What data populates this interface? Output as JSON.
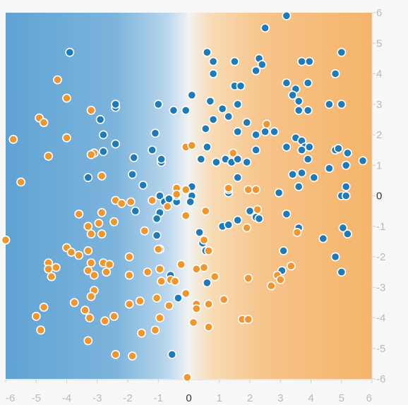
{
  "chart_data": {
    "type": "scatter",
    "title": "",
    "xlabel": "",
    "ylabel": "",
    "xlim": [
      -6,
      6
    ],
    "ylim": [
      -6,
      6
    ],
    "x_ticks": [
      "-6",
      "-5",
      "-4",
      "-3",
      "-2",
      "-1",
      "0",
      "1",
      "2",
      "3",
      "4",
      "5",
      "6"
    ],
    "y_ticks": [
      "6",
      "5",
      "4",
      "3",
      "2",
      "1",
      "0",
      "-1",
      "-2",
      "-3",
      "-4",
      "-5",
      "-6"
    ],
    "grid": false,
    "legend": "none",
    "background": {
      "type": "gradient-heatmap",
      "negative_color": "#6aa9d6",
      "mid_color": "#f2f2f2",
      "positive_color": "#f5b46a"
    },
    "colors": {
      "blue": "#1f7ab8",
      "orange": "#f0962e"
    },
    "series": [
      {
        "color_key": "blue",
        "points": [
          [
            3.2,
            5.9
          ],
          [
            2.5,
            5.5
          ],
          [
            0.6,
            4.7
          ],
          [
            0.8,
            4.4
          ],
          [
            0.8,
            4.0
          ],
          [
            1.5,
            4.4
          ],
          [
            2.3,
            4.5
          ],
          [
            2.4,
            4.3
          ],
          [
            2.2,
            4.1
          ],
          [
            3.7,
            4.4
          ],
          [
            3.95,
            4.4
          ],
          [
            4.8,
            4.0
          ],
          [
            5.0,
            4.7
          ],
          [
            1.5,
            3.6
          ],
          [
            1.7,
            3.6
          ],
          [
            3.2,
            3.7
          ],
          [
            3.5,
            3.5
          ],
          [
            3.9,
            3.7
          ],
          [
            3.4,
            3.3
          ],
          [
            3.6,
            3.1
          ],
          [
            3.6,
            2.8
          ],
          [
            3.9,
            2.8
          ],
          [
            4.6,
            3.0
          ],
          [
            5.0,
            3.0
          ],
          [
            0.1,
            3.3
          ],
          [
            0.7,
            3.1
          ],
          [
            1.1,
            2.85
          ],
          [
            1.6,
            3.0
          ],
          [
            1.3,
            2.6
          ],
          [
            0.8,
            2.5
          ],
          [
            1.9,
            2.4
          ],
          [
            2.2,
            2.0
          ],
          [
            2.5,
            2.1
          ],
          [
            2.8,
            2.1
          ],
          [
            1.6,
            2.1
          ],
          [
            3.5,
            1.9
          ],
          [
            3.7,
            1.8
          ],
          [
            3.8,
            1.6
          ],
          [
            3.95,
            1.6
          ],
          [
            3.7,
            1.5
          ],
          [
            0.55,
            2.2
          ],
          [
            0.6,
            1.6
          ],
          [
            0.4,
            1.2
          ],
          [
            0.9,
            1.1
          ],
          [
            1.2,
            1.2
          ],
          [
            1.4,
            1.1
          ],
          [
            1.6,
            1.2
          ],
          [
            2.2,
            1.5
          ],
          [
            1.9,
            1.1
          ],
          [
            1.6,
            0.6
          ],
          [
            3.2,
            1.6
          ],
          [
            3.4,
            0.7
          ],
          [
            3.7,
            0.75
          ],
          [
            3.9,
            1.2
          ],
          [
            4.1,
            0.6
          ],
          [
            4.6,
            0.9
          ],
          [
            4.8,
            1.5
          ],
          [
            4.9,
            1.55
          ],
          [
            5.2,
            1.4
          ],
          [
            5.15,
            1.0
          ],
          [
            5.7,
            1.15
          ],
          [
            3.6,
            0.3
          ],
          [
            2.95,
            0.1
          ],
          [
            5.15,
            0.3
          ],
          [
            5.0,
            0.0
          ],
          [
            5.15,
            0.0
          ],
          [
            1.3,
            0.1
          ],
          [
            1.3,
            0.2
          ],
          [
            -3.9,
            4.7
          ],
          [
            -2.4,
            2.9
          ],
          [
            -2.4,
            3.0
          ],
          [
            -1.0,
            3.0
          ],
          [
            -0.5,
            2.8
          ],
          [
            -0.1,
            2.8
          ],
          [
            -2.9,
            2.5
          ],
          [
            -2.8,
            2.0
          ],
          [
            -2.4,
            1.7
          ],
          [
            -2.8,
            1.45
          ],
          [
            -1.8,
            1.25
          ],
          [
            -1.2,
            1.5
          ],
          [
            -1.1,
            2.05
          ],
          [
            -0.9,
            1.1
          ],
          [
            -0.9,
            1.2
          ],
          [
            -3.3,
            0.6
          ],
          [
            -1.85,
            0.7
          ],
          [
            -1.5,
            0.35
          ],
          [
            -0.95,
            0.0
          ],
          [
            -0.8,
            -0.2
          ],
          [
            -0.65,
            -0.1
          ],
          [
            -0.4,
            -0.2
          ],
          [
            -0.4,
            0.0
          ],
          [
            0.1,
            0.3
          ],
          [
            0.1,
            0.0
          ],
          [
            0.05,
            -0.2
          ],
          [
            -1.75,
            -0.5
          ],
          [
            -0.95,
            -0.55
          ],
          [
            -1.05,
            -0.75
          ],
          [
            -1.05,
            -1.3
          ],
          [
            -0.95,
            -1.75
          ],
          [
            0.35,
            -1.2
          ],
          [
            0.45,
            -1.55
          ],
          [
            0.55,
            -1.8
          ],
          [
            1.1,
            -1.0
          ],
          [
            1.3,
            -0.95
          ],
          [
            1.6,
            -0.8
          ],
          [
            2.0,
            -0.5
          ],
          [
            2.2,
            -0.7
          ],
          [
            2.3,
            -0.75
          ],
          [
            3.2,
            -0.6
          ],
          [
            3.6,
            -1.05
          ],
          [
            4.4,
            -1.4
          ],
          [
            5.05,
            -1.05
          ],
          [
            5.2,
            -1.25
          ],
          [
            3.1,
            -1.8
          ],
          [
            4.8,
            -2.0
          ],
          [
            3.05,
            -2.45
          ],
          [
            5.0,
            -2.5
          ],
          [
            0.6,
            -2.85
          ],
          [
            -0.6,
            -2.6
          ],
          [
            -0.35,
            -3.35
          ],
          [
            -0.55,
            -5.2
          ]
        ]
      },
      {
        "color_key": "orange",
        "points": [
          [
            -4.3,
            3.8
          ],
          [
            -4.0,
            3.2
          ],
          [
            -3.2,
            2.8
          ],
          [
            -4.9,
            2.55
          ],
          [
            -4.75,
            2.4
          ],
          [
            -4.0,
            1.9
          ],
          [
            -5.75,
            1.85
          ],
          [
            -4.6,
            1.3
          ],
          [
            -3.1,
            1.4
          ],
          [
            -3.2,
            1.35
          ],
          [
            -2.85,
            0.65
          ],
          [
            -5.5,
            0.45
          ],
          [
            -0.1,
            1.6
          ],
          [
            0.1,
            1.65
          ],
          [
            1.45,
            1.4
          ],
          [
            2.55,
            2.35
          ],
          [
            1.3,
            0.25
          ],
          [
            1.95,
            0.2
          ],
          [
            2.2,
            0.2
          ],
          [
            -0.4,
            0.25
          ],
          [
            -0.4,
            0.05
          ],
          [
            -0.1,
            0.2
          ],
          [
            -2.4,
            -0.15
          ],
          [
            -2.2,
            -0.25
          ],
          [
            -1.9,
            -0.2
          ],
          [
            -1.2,
            -0.15
          ],
          [
            -0.7,
            -0.35
          ],
          [
            -0.1,
            -0.65
          ],
          [
            0.55,
            -0.5
          ],
          [
            2.25,
            -0.45
          ],
          [
            1.9,
            -1.05
          ],
          [
            3.55,
            -1.2
          ],
          [
            -3.6,
            -0.6
          ],
          [
            -2.85,
            -0.55
          ],
          [
            -2.95,
            -0.9
          ],
          [
            -2.45,
            -0.85
          ],
          [
            -3.3,
            -1.0
          ],
          [
            -3.2,
            -1.25
          ],
          [
            -2.85,
            -1.25
          ],
          [
            -1.45,
            -1.15
          ],
          [
            -1.0,
            -1.75
          ],
          [
            0.5,
            -1.45
          ],
          [
            0.65,
            -1.8
          ],
          [
            -6.0,
            -1.45
          ],
          [
            -4.0,
            -1.7
          ],
          [
            -3.85,
            -1.85
          ],
          [
            -3.6,
            -1.95
          ],
          [
            -3.3,
            -1.8
          ],
          [
            -3.2,
            -2.2
          ],
          [
            -2.8,
            -2.2
          ],
          [
            -4.6,
            -2.2
          ],
          [
            -4.35,
            -2.35
          ],
          [
            -4.6,
            -2.4
          ],
          [
            -4.5,
            -2.65
          ],
          [
            -3.3,
            -2.45
          ],
          [
            -3.1,
            -2.6
          ],
          [
            -2.7,
            -2.5
          ],
          [
            -2.6,
            -2.25
          ],
          [
            -1.95,
            -2.0
          ],
          [
            -1.95,
            -2.6
          ],
          [
            -1.35,
            -2.5
          ],
          [
            -0.95,
            -2.4
          ],
          [
            -0.9,
            -2.8
          ],
          [
            -0.6,
            -2.75
          ],
          [
            -0.45,
            -2.8
          ],
          [
            -0.25,
            -2.25
          ],
          [
            0.25,
            -2.4
          ],
          [
            0.5,
            -2.35
          ],
          [
            0.85,
            -2.65
          ],
          [
            1.95,
            -2.7
          ],
          [
            2.7,
            -2.95
          ],
          [
            2.9,
            -2.6
          ],
          [
            3.0,
            -2.75
          ],
          [
            3.35,
            -2.3
          ],
          [
            -3.1,
            -3.1
          ],
          [
            -3.2,
            -3.3
          ],
          [
            -3.75,
            -3.5
          ],
          [
            -3.4,
            -3.75
          ],
          [
            -3.25,
            -4.0
          ],
          [
            -2.75,
            -4.1
          ],
          [
            -2.45,
            -3.95
          ],
          [
            -1.95,
            -3.55
          ],
          [
            -1.6,
            -3.45
          ],
          [
            -1.05,
            -3.35
          ],
          [
            -0.65,
            -3.6
          ],
          [
            -0.1,
            -3.2
          ],
          [
            0.25,
            -3.55
          ],
          [
            0.25,
            -3.7
          ],
          [
            0.65,
            -3.55
          ],
          [
            1.15,
            -3.4
          ],
          [
            -4.75,
            -3.65
          ],
          [
            -5.0,
            -3.95
          ],
          [
            -4.85,
            -4.4
          ],
          [
            -1.55,
            -4.5
          ],
          [
            -1.1,
            -4.4
          ],
          [
            -0.95,
            -4.0
          ],
          [
            0.15,
            -4.15
          ],
          [
            0.65,
            -4.3
          ],
          [
            1.75,
            -4.05
          ],
          [
            1.95,
            -4.05
          ],
          [
            -3.3,
            -4.75
          ],
          [
            -2.4,
            -5.2
          ],
          [
            -1.85,
            -5.25
          ],
          [
            -0.05,
            -5.95
          ]
        ]
      }
    ]
  }
}
